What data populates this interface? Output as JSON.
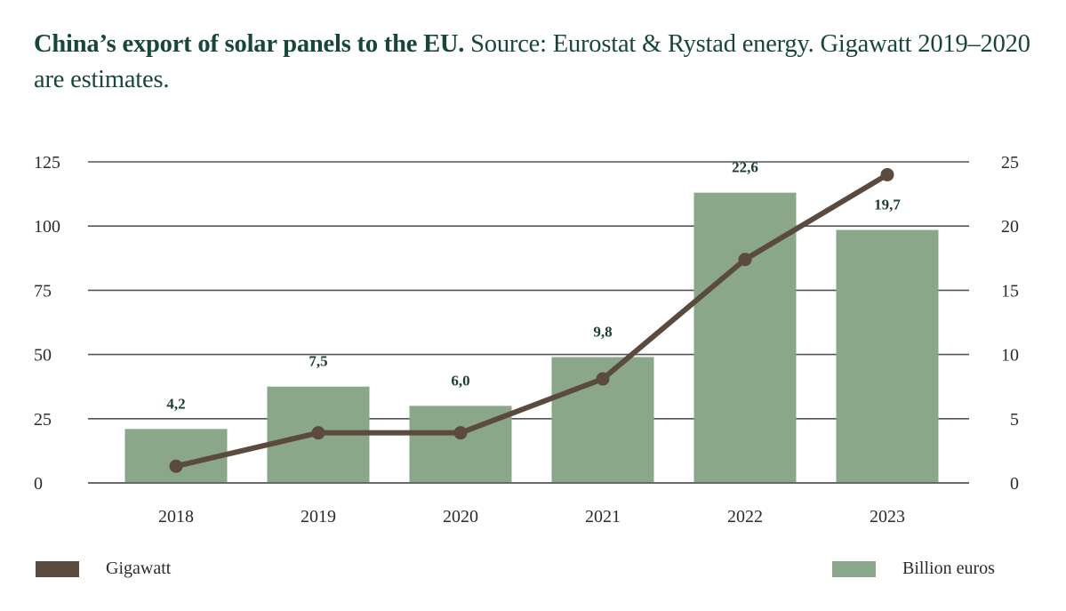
{
  "header": {
    "title_bold": "China’s export of solar panels to the EU.",
    "title_rest": " Source: Eurostat & Rystad energy. Gigawatt 2019–2020 are estimates."
  },
  "colors": {
    "bar": "#8aa78a",
    "line": "#5a4b3e",
    "grid": "#555555",
    "title": "#17473a"
  },
  "chart_data": {
    "type": "bar",
    "title": "China’s export of solar panels to the EU.",
    "subtitle": "Source: Eurostat & Rystad energy. Gigawatt 2019–2020 are estimates.",
    "categories": [
      "2018",
      "2019",
      "2020",
      "2021",
      "2022",
      "2023"
    ],
    "series": [
      {
        "name": "Billion euros",
        "type": "bar",
        "axis": "right",
        "values": [
          4.2,
          7.5,
          6.0,
          9.8,
          22.6,
          19.7
        ],
        "labels": [
          "4,2",
          "7,5",
          "6,0",
          "9,8",
          "22,6",
          "19,7"
        ]
      },
      {
        "name": "Gigawatt",
        "type": "line",
        "axis": "left",
        "values": [
          6.5,
          19.5,
          19.5,
          40.5,
          87,
          120
        ]
      }
    ],
    "left_axis": {
      "ylim": [
        0,
        125
      ],
      "ticks": [
        "0",
        "25",
        "50",
        "75",
        "100",
        "125"
      ],
      "tick_values": [
        0,
        25,
        50,
        75,
        100,
        125
      ]
    },
    "right_axis": {
      "ylim": [
        0,
        25
      ],
      "ticks": [
        "0",
        "5",
        "10",
        "15",
        "20",
        "25"
      ],
      "tick_values": [
        0,
        5,
        10,
        15,
        20,
        25
      ]
    },
    "xlabel": "",
    "ylabel": "",
    "grid": true,
    "legend": [
      {
        "label": "Gigawatt",
        "placement": "bottom-left"
      },
      {
        "label": "Billion euros",
        "placement": "bottom-right"
      }
    ]
  }
}
